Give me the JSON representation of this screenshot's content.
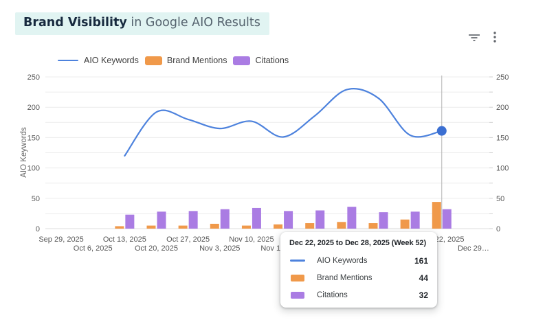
{
  "header": {
    "title_highlight": "Brand Visibility",
    "title_rest": " in Google AIO Results",
    "icons": [
      {
        "name": "filter-icon",
        "color": "#63676d"
      },
      {
        "name": "kebab-menu-icon",
        "color": "#63676d"
      }
    ],
    "highlight_bg": "#e1f4f2"
  },
  "legend": [
    {
      "label": "AIO Keywords",
      "swatch": "line",
      "color": "#4d82dd"
    },
    {
      "label": "Brand Mentions",
      "swatch": "rect",
      "color": "#f0994a"
    },
    {
      "label": "Citations",
      "swatch": "rect",
      "color": "#aa7ce3"
    }
  ],
  "y_axis": {
    "title": "AIO Keywords",
    "ticks": [
      0,
      50,
      100,
      150,
      200,
      250
    ],
    "minor_step": 25
  },
  "chart_data": {
    "type": "line+bar",
    "title": "Brand Visibility in Google AIO Results",
    "xlabel": "",
    "ylabel": "AIO Keywords",
    "ylim": [
      0,
      250
    ],
    "ytick_step": 50,
    "grid": true,
    "legend_position": "top",
    "categories": [
      "Sep 29, 2025",
      "Oct 6, 2025",
      "Oct 13, 2025",
      "Oct 20, 2025",
      "Oct 27, 2025",
      "Nov 3, 2025",
      "Nov 10, 2025",
      "Nov 17, 2025",
      "Nov 24, 2025",
      "Dec 1, 2025",
      "Dec 8, 2025",
      "Dec 15, 2025",
      "Dec 22, 2025",
      "Dec 29…"
    ],
    "highlighted_index": 12,
    "series": [
      {
        "name": "AIO Keywords",
        "type": "line",
        "color": "#4d82dd",
        "marker_color": "#3b6fd2",
        "values": [
          null,
          null,
          120,
          192,
          180,
          165,
          177,
          151,
          186,
          229,
          215,
          154,
          161,
          null
        ]
      },
      {
        "name": "Brand Mentions",
        "type": "bar",
        "color": "#f0994a",
        "values": [
          null,
          null,
          4,
          5,
          5,
          8,
          5,
          7,
          9,
          11,
          9,
          15,
          44,
          null
        ]
      },
      {
        "name": "Citations",
        "type": "bar",
        "color": "#aa7ce3",
        "values": [
          null,
          null,
          23,
          28,
          29,
          32,
          34,
          29,
          30,
          36,
          27,
          28,
          32,
          null
        ]
      }
    ],
    "colors": {
      "gridline": "#ececec",
      "axis_baseline": "#dcdcdc",
      "crosshair": "#b3b3b3",
      "tick_label": "#595959"
    }
  },
  "tooltip": {
    "title": "Dec 22, 2025 to Dec 28, 2025 (Week 52)",
    "rows": [
      {
        "label": "AIO Keywords",
        "value": "161",
        "swatch": "line",
        "color": "#4d82dd"
      },
      {
        "label": "Brand Mentions",
        "value": "44",
        "swatch": "rect",
        "color": "#f0994a"
      },
      {
        "label": "Citations",
        "value": "32",
        "swatch": "rect",
        "color": "#aa7ce3"
      }
    ]
  }
}
